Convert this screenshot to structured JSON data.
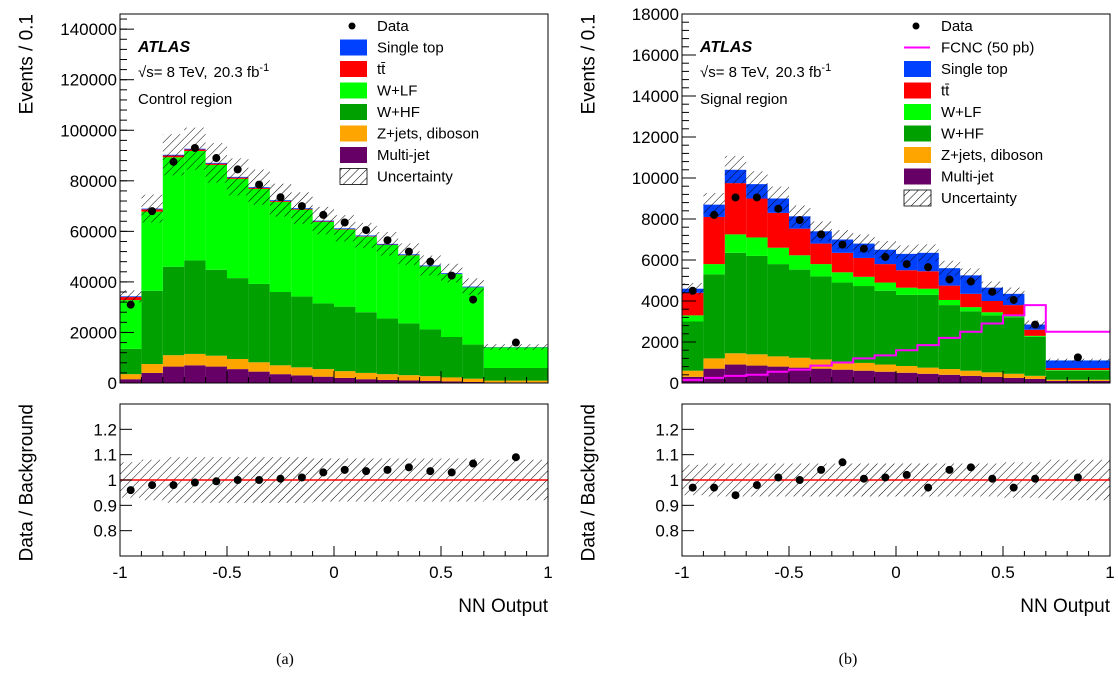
{
  "chart_data": [
    {
      "type": "bar",
      "subtype": "stacked-histogram-with-ratio",
      "caption": "(a)",
      "experiment_label": "ATLAS",
      "energy_label": "√s= 8 TeV,",
      "lumi_label": "20.3 fb",
      "lumi_sup": "-1",
      "region_label": "Control region",
      "xlabel": "NN Output",
      "ylabel": "Events / 0.1",
      "ratio_ylabel": "Data / Background",
      "xlim": [
        -1,
        1
      ],
      "ylim": [
        0,
        146000
      ],
      "ratio_ylim": [
        0.7,
        1.3
      ],
      "x_ticks": [
        "-1",
        "-0.5",
        "0",
        "0.5",
        "1"
      ],
      "y_ticks": [
        0,
        20000,
        40000,
        60000,
        80000,
        100000,
        120000,
        140000
      ],
      "ratio_ticks": [
        0.8,
        0.9,
        1,
        1.1,
        1.2
      ],
      "bin_edges": [
        -1.0,
        -0.9,
        -0.8,
        -0.7,
        -0.6,
        -0.5,
        -0.4,
        -0.3,
        -0.2,
        -0.1,
        0.0,
        0.1,
        0.2,
        0.3,
        0.4,
        0.5,
        0.6,
        0.7,
        1.0
      ],
      "stack_order": [
        "Multi-jet",
        "Z+jets, diboson",
        "W+HF",
        "W+LF",
        "tt̄",
        "Single top"
      ],
      "colors": {
        "Single top": "#0040ff",
        "tt̄": "#ff0000",
        "W+LF": "#00ff00",
        "W+HF": "#00a000",
        "Z+jets, diboson": "#ffa500",
        "Multi-jet": "#660066",
        "Data": "#000000",
        "Ratio line": "#ff0000"
      },
      "legend": [
        {
          "label": "Data",
          "kind": "marker"
        },
        {
          "label": "Single top",
          "kind": "box"
        },
        {
          "label": "tt̄",
          "kind": "box"
        },
        {
          "label": "W+LF",
          "kind": "box"
        },
        {
          "label": "W+HF",
          "kind": "box"
        },
        {
          "label": "Z+jets, diboson",
          "kind": "box"
        },
        {
          "label": "Multi-jet",
          "kind": "box"
        },
        {
          "label": "Uncertainty",
          "kind": "hatch"
        }
      ],
      "series": [
        {
          "name": "Multi-jet",
          "values": [
            1500,
            4000,
            6500,
            7000,
            6500,
            5500,
            4500,
            3500,
            3000,
            2500,
            2000,
            1500,
            1200,
            1000,
            800,
            600,
            400,
            250
          ]
        },
        {
          "name": "Z+jets, diboson",
          "values": [
            2000,
            3500,
            4500,
            4500,
            4300,
            4000,
            3700,
            3500,
            3200,
            3000,
            2700,
            2500,
            2300,
            2100,
            1900,
            1600,
            1300,
            700
          ]
        },
        {
          "name": "W+HF",
          "values": [
            10000,
            29000,
            35000,
            37000,
            34000,
            32000,
            31000,
            29000,
            28000,
            26000,
            25500,
            24000,
            22000,
            20500,
            18500,
            16000,
            13500,
            5000
          ]
        },
        {
          "name": "W+LF",
          "values": [
            19300,
            31300,
            43300,
            43300,
            41500,
            39300,
            37600,
            35700,
            34400,
            32200,
            30500,
            29900,
            29100,
            26900,
            24900,
            24900,
            22600,
            8150
          ]
        },
        {
          "name": "tt̄",
          "values": [
            1200,
            900,
            700,
            600,
            500,
            450,
            400,
            350,
            300,
            250,
            200,
            180,
            150,
            120,
            100,
            80,
            50,
            30
          ]
        },
        {
          "name": "Single top",
          "values": [
            300,
            300,
            300,
            300,
            300,
            300,
            300,
            300,
            300,
            300,
            300,
            300,
            300,
            300,
            300,
            300,
            300,
            100
          ]
        }
      ],
      "uncertainty_fraction": [
        0.07,
        0.08,
        0.09,
        0.09,
        0.09,
        0.09,
        0.09,
        0.09,
        0.09,
        0.085,
        0.085,
        0.085,
        0.085,
        0.085,
        0.085,
        0.085,
        0.085,
        0.08
      ],
      "data": [
        31000,
        68000,
        87500,
        93000,
        89000,
        84500,
        78500,
        73500,
        70000,
        66500,
        63500,
        60500,
        56500,
        52000,
        48000,
        42500,
        33000,
        16000
      ],
      "ratio": [
        0.96,
        0.98,
        0.98,
        0.99,
        0.995,
        1.0,
        1.0,
        1.005,
        1.01,
        1.03,
        1.04,
        1.035,
        1.04,
        1.05,
        1.035,
        1.03,
        1.065,
        1.09
      ]
    },
    {
      "type": "bar",
      "subtype": "stacked-histogram-with-ratio",
      "caption": "(b)",
      "experiment_label": "ATLAS",
      "energy_label": "√s= 8 TeV,",
      "lumi_label": "20.3 fb",
      "lumi_sup": "-1",
      "region_label": "Signal region",
      "xlabel": "NN Output",
      "ylabel": "Events / 0.1",
      "ratio_ylabel": "Data / Background",
      "xlim": [
        -1,
        1
      ],
      "ylim": [
        0,
        18000
      ],
      "ratio_ylim": [
        0.7,
        1.3
      ],
      "x_ticks": [
        "-1",
        "-0.5",
        "0",
        "0.5",
        "1"
      ],
      "y_ticks": [
        0,
        2000,
        4000,
        6000,
        8000,
        10000,
        12000,
        14000,
        16000,
        18000
      ],
      "ratio_ticks": [
        0.8,
        0.9,
        1,
        1.1,
        1.2
      ],
      "bin_edges": [
        -1.0,
        -0.9,
        -0.8,
        -0.7,
        -0.6,
        -0.5,
        -0.4,
        -0.3,
        -0.2,
        -0.1,
        0.0,
        0.1,
        0.2,
        0.3,
        0.4,
        0.5,
        0.6,
        0.7,
        1.0
      ],
      "stack_order": [
        "Multi-jet",
        "Z+jets, diboson",
        "W+HF",
        "W+LF",
        "tt̄",
        "Single top"
      ],
      "colors": {
        "Single top": "#0040ff",
        "tt̄": "#ff0000",
        "W+LF": "#00ff00",
        "W+HF": "#00a000",
        "Z+jets, diboson": "#ffa500",
        "Multi-jet": "#660066",
        "FCNC (50 pb)": "#ff00ff",
        "Data": "#000000",
        "Ratio line": "#ff0000"
      },
      "legend": [
        {
          "label": "Data",
          "kind": "marker"
        },
        {
          "label": "FCNC (50 pb)",
          "kind": "line"
        },
        {
          "label": "Single top",
          "kind": "box"
        },
        {
          "label": "tt̄",
          "kind": "box"
        },
        {
          "label": "W+LF",
          "kind": "box"
        },
        {
          "label": "W+HF",
          "kind": "box"
        },
        {
          "label": "Z+jets, diboson",
          "kind": "box"
        },
        {
          "label": "Multi-jet",
          "kind": "box"
        },
        {
          "label": "Uncertainty",
          "kind": "hatch"
        }
      ],
      "series": [
        {
          "name": "Multi-jet",
          "values": [
            300,
            700,
            900,
            850,
            800,
            750,
            700,
            650,
            600,
            550,
            500,
            450,
            400,
            350,
            300,
            250,
            200,
            100
          ]
        },
        {
          "name": "Z+jets, diboson",
          "values": [
            300,
            500,
            550,
            550,
            500,
            480,
            450,
            400,
            380,
            350,
            330,
            300,
            280,
            250,
            220,
            200,
            150,
            60
          ]
        },
        {
          "name": "W+HF",
          "values": [
            2400,
            4100,
            4900,
            4800,
            4500,
            4300,
            4050,
            3850,
            3750,
            3600,
            3470,
            3550,
            3120,
            2900,
            2780,
            2750,
            1900,
            440
          ]
        },
        {
          "name": "W+LF",
          "values": [
            300,
            500,
            900,
            900,
            800,
            700,
            600,
            500,
            450,
            400,
            350,
            300,
            250,
            200,
            150,
            100,
            50,
            30
          ]
        },
        {
          "name": "tt̄",
          "values": [
            1100,
            2300,
            2500,
            1900,
            1700,
            1300,
            1000,
            950,
            920,
            900,
            850,
            850,
            700,
            650,
            550,
            500,
            300,
            100
          ]
        },
        {
          "name": "Single top",
          "values": [
            200,
            600,
            650,
            700,
            700,
            600,
            600,
            650,
            700,
            700,
            800,
            900,
            850,
            900,
            650,
            550,
            250,
            370
          ]
        }
      ],
      "fcnc": [
        150,
        250,
        350,
        400,
        550,
        650,
        850,
        1000,
        1200,
        1350,
        1600,
        1850,
        2200,
        2500,
        2900,
        3300,
        3800,
        2500
      ],
      "uncertainty_fraction": [
        0.06,
        0.065,
        0.065,
        0.065,
        0.065,
        0.065,
        0.065,
        0.065,
        0.065,
        0.065,
        0.065,
        0.065,
        0.065,
        0.065,
        0.065,
        0.07,
        0.07,
        0.08
      ],
      "data": [
        4500,
        8200,
        9050,
        9050,
        8500,
        7950,
        7250,
        6750,
        6550,
        6150,
        5800,
        5650,
        5050,
        4950,
        4450,
        4050,
        2850,
        1250
      ],
      "ratio": [
        0.97,
        0.97,
        0.94,
        0.98,
        1.01,
        1.0,
        1.04,
        1.07,
        1.005,
        1.01,
        1.02,
        0.97,
        1.04,
        1.05,
        1.005,
        0.97,
        1.005,
        1.01
      ]
    }
  ]
}
